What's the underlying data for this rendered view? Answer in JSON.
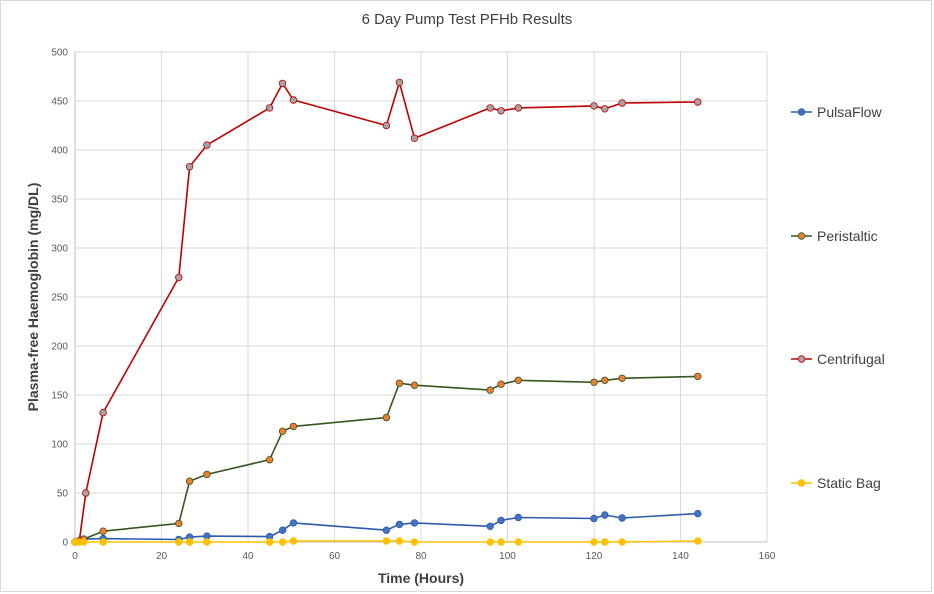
{
  "chart_data": {
    "type": "line",
    "title": "6 Day Pump Test PFHb Results",
    "xlabel": "Time (Hours)",
    "ylabel": "Plasma-free Haemoglobin (mg/DL)",
    "xlim": [
      0,
      160
    ],
    "ylim": [
      0,
      500
    ],
    "x_ticks": [
      "0",
      "20",
      "40",
      "60",
      "80",
      "100",
      "120",
      "140",
      "160"
    ],
    "y_ticks": [
      "0",
      "50",
      "100",
      "150",
      "200",
      "250",
      "300",
      "350",
      "400",
      "450",
      "500"
    ],
    "grid": "vertical-and-horizontal",
    "legend_position": "right",
    "series": [
      {
        "name": "PulsaFlow",
        "line_color": "#2e5aa8",
        "marker_color": "#4472c4",
        "points": [
          [
            0,
            0
          ],
          [
            1,
            1
          ],
          [
            2,
            3
          ],
          [
            6.5,
            3.5
          ],
          [
            24,
            2.5
          ],
          [
            26.5,
            5
          ],
          [
            30.5,
            6
          ],
          [
            45,
            5.5
          ],
          [
            48,
            12
          ],
          [
            50.5,
            19.5
          ],
          [
            72,
            12
          ],
          [
            75,
            18
          ],
          [
            78.5,
            19.5
          ],
          [
            96,
            16
          ],
          [
            98.5,
            22
          ],
          [
            102.5,
            25
          ],
          [
            120,
            24
          ],
          [
            122.5,
            27.5
          ],
          [
            126.5,
            24.5
          ],
          [
            144,
            29
          ]
        ]
      },
      {
        "name": "Peristaltic",
        "line_color": "#375623",
        "marker_color": "#ed7d31",
        "points": [
          [
            0,
            0
          ],
          [
            1,
            1
          ],
          [
            2,
            3
          ],
          [
            6.5,
            11
          ],
          [
            24,
            19
          ],
          [
            26.5,
            62
          ],
          [
            30.5,
            69
          ],
          [
            45,
            84
          ],
          [
            48,
            113
          ],
          [
            50.5,
            118
          ],
          [
            72,
            127
          ],
          [
            75,
            162
          ],
          [
            78.5,
            160
          ],
          [
            96,
            155
          ],
          [
            98.5,
            161
          ],
          [
            102.5,
            165
          ],
          [
            120,
            163
          ],
          [
            122.5,
            165
          ],
          [
            126.5,
            167
          ],
          [
            144,
            169
          ]
        ]
      },
      {
        "name": "Centrifugal",
        "line_color": "#c00000",
        "marker_color": "#a5a5a5",
        "points": [
          [
            0,
            0
          ],
          [
            1,
            1
          ],
          [
            2.5,
            50
          ],
          [
            6.5,
            132
          ],
          [
            24,
            270
          ],
          [
            26.5,
            383
          ],
          [
            30.5,
            405
          ],
          [
            45,
            443
          ],
          [
            48,
            468
          ],
          [
            50.5,
            451
          ],
          [
            72,
            425
          ],
          [
            75,
            469
          ],
          [
            78.5,
            412
          ],
          [
            96,
            443
          ],
          [
            98.5,
            440
          ],
          [
            102.5,
            443
          ],
          [
            120,
            445
          ],
          [
            122.5,
            442
          ],
          [
            126.5,
            448
          ],
          [
            144,
            449
          ]
        ]
      },
      {
        "name": "Static Bag",
        "line_color": "#ffc000",
        "marker_color": "#ffc000",
        "points": [
          [
            0,
            0
          ],
          [
            1,
            0
          ],
          [
            2,
            0
          ],
          [
            6.5,
            0
          ],
          [
            24,
            0
          ],
          [
            26.5,
            0
          ],
          [
            30.5,
            0
          ],
          [
            45,
            0
          ],
          [
            48,
            0
          ],
          [
            50.5,
            1
          ],
          [
            72,
            1
          ],
          [
            75,
            1
          ],
          [
            78.5,
            0
          ],
          [
            96,
            0
          ],
          [
            98.5,
            0
          ],
          [
            102.5,
            0
          ],
          [
            120,
            0
          ],
          [
            122.5,
            0
          ],
          [
            126.5,
            0
          ],
          [
            144,
            1
          ]
        ]
      }
    ]
  }
}
